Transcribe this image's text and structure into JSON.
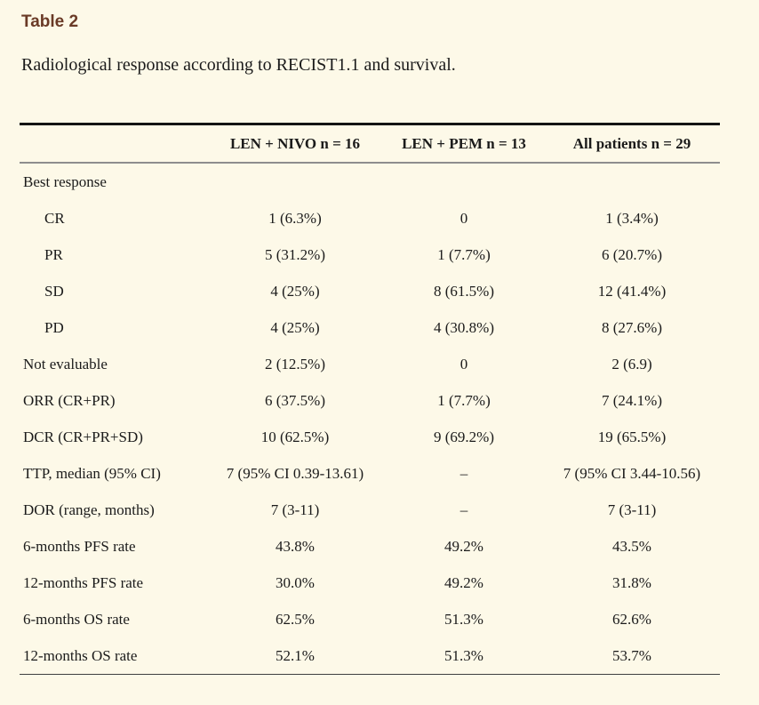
{
  "colors": {
    "background": "#fdf9e8",
    "caption_label": "#6a3a26",
    "text": "#1b1b1b",
    "rule_top": "#141414",
    "rule_header": "#8e8e8e",
    "rule_bottom": "#3f3f3f"
  },
  "caption": {
    "label": "Table 2",
    "text": "Radiological response according to RECIST1.1 and survival."
  },
  "table": {
    "columns": [
      "LEN + NIVO n = 16",
      "LEN + PEM n = 13",
      "All patients n = 29"
    ],
    "rows": [
      {
        "label": "Best response",
        "indent": false,
        "values": [
          "",
          "",
          ""
        ]
      },
      {
        "label": "CR",
        "indent": true,
        "values": [
          "1 (6.3%)",
          "0",
          "1 (3.4%)"
        ]
      },
      {
        "label": "PR",
        "indent": true,
        "values": [
          "5 (31.2%)",
          "1 (7.7%)",
          "6 (20.7%)"
        ]
      },
      {
        "label": "SD",
        "indent": true,
        "values": [
          "4 (25%)",
          "8 (61.5%)",
          "12 (41.4%)"
        ]
      },
      {
        "label": "PD",
        "indent": true,
        "values": [
          "4 (25%)",
          "4 (30.8%)",
          "8 (27.6%)"
        ]
      },
      {
        "label": "Not evaluable",
        "indent": false,
        "values": [
          "2 (12.5%)",
          "0",
          "2 (6.9)"
        ]
      },
      {
        "label": "ORR (CR+PR)",
        "indent": false,
        "values": [
          "6 (37.5%)",
          "1 (7.7%)",
          "7 (24.1%)"
        ]
      },
      {
        "label": "DCR (CR+PR+SD)",
        "indent": false,
        "values": [
          "10 (62.5%)",
          "9 (69.2%)",
          "19 (65.5%)"
        ]
      },
      {
        "label": "TTP, median (95% CI)",
        "indent": false,
        "values": [
          "7 (95% CI 0.39-13.61)",
          "–",
          "7 (95% CI 3.44-10.56)"
        ]
      },
      {
        "label": "DOR (range, months)",
        "indent": false,
        "values": [
          "7 (3-11)",
          "–",
          "7 (3-11)"
        ]
      },
      {
        "label": "6-months PFS rate",
        "indent": false,
        "values": [
          "43.8%",
          "49.2%",
          "43.5%"
        ]
      },
      {
        "label": "12-months PFS rate",
        "indent": false,
        "values": [
          "30.0%",
          "49.2%",
          "31.8%"
        ]
      },
      {
        "label": "6-months OS rate",
        "indent": false,
        "values": [
          "62.5%",
          "51.3%",
          "62.6%"
        ]
      },
      {
        "label": "12-months OS rate",
        "indent": false,
        "values": [
          "52.1%",
          "51.3%",
          "53.7%"
        ]
      }
    ]
  }
}
